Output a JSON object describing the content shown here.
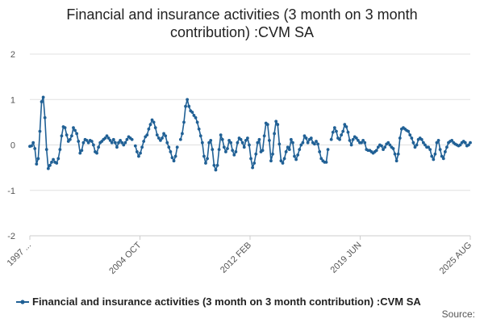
{
  "chart_data": {
    "type": "line",
    "title_line1": "Financial and insurance activities (3 month on 3 month",
    "title_line2": "contribution) :CVM SA",
    "xlabel": "",
    "ylabel": "",
    "ylim": [
      -2,
      2
    ],
    "yticks": [
      "2",
      "1",
      "0",
      "-1",
      "-2"
    ],
    "xtick_labels": [
      "1997 ...",
      "2004 OCT",
      "2012 FEB",
      "2019 JUN",
      "2025 AUG"
    ],
    "grid": true,
    "legend_position": "bottom",
    "series_color": "#206095",
    "source_label": "Source:",
    "series": [
      {
        "name": "Financial and insurance activities (3 month on 3 month contribution) :CVM SA",
        "points": [
          [
            0,
            -0.03
          ],
          [
            1,
            -0.02
          ],
          [
            2,
            0.05
          ],
          [
            3,
            -0.08
          ],
          [
            4,
            -0.42
          ],
          [
            5,
            -0.3
          ],
          [
            6,
            0.3
          ],
          [
            7,
            0.95
          ],
          [
            8,
            1.05
          ],
          [
            9,
            0.6
          ],
          [
            10,
            -0.1
          ],
          [
            11,
            -0.52
          ],
          [
            12,
            -0.45
          ],
          [
            13,
            -0.38
          ],
          [
            14,
            -0.32
          ],
          [
            15,
            -0.38
          ],
          [
            16,
            -0.4
          ],
          [
            17,
            -0.3
          ],
          [
            18,
            -0.1
          ],
          [
            19,
            0.2
          ],
          [
            20,
            0.4
          ],
          [
            21,
            0.38
          ],
          [
            22,
            0.22
          ],
          [
            23,
            0.08
          ],
          [
            24,
            0.12
          ],
          [
            25,
            0.2
          ],
          [
            26,
            0.38
          ],
          [
            27,
            0.32
          ],
          [
            28,
            0.25
          ],
          [
            29,
            0.08
          ],
          [
            30,
            -0.18
          ],
          [
            31,
            -0.12
          ],
          [
            32,
            0.05
          ],
          [
            33,
            0.12
          ],
          [
            34,
            0.1
          ],
          [
            35,
            0.05
          ],
          [
            36,
            0.1
          ],
          [
            37,
            0.08
          ],
          [
            38,
            0.0
          ],
          [
            39,
            -0.15
          ],
          [
            40,
            -0.18
          ],
          [
            41,
            -0.05
          ],
          [
            42,
            0.05
          ],
          [
            43,
            0.08
          ],
          [
            44,
            0.12
          ],
          [
            45,
            0.15
          ],
          [
            46,
            0.2
          ],
          [
            47,
            0.15
          ],
          [
            48,
            0.1
          ],
          [
            49,
            0.05
          ],
          [
            50,
            0.12
          ],
          [
            51,
            0.05
          ],
          [
            52,
            -0.05
          ],
          [
            53,
            0.05
          ],
          [
            54,
            0.1
          ],
          [
            55,
            0.05
          ],
          [
            56,
            0.0
          ],
          [
            57,
            0.05
          ],
          [
            58,
            0.12
          ],
          [
            59,
            0.18
          ],
          [
            60,
            0.15
          ],
          [
            61,
            0.12
          ],
          [
            63,
            -0.02
          ],
          [
            64,
            -0.15
          ],
          [
            65,
            -0.25
          ],
          [
            66,
            -0.18
          ],
          [
            67,
            -0.05
          ],
          [
            68,
            0.08
          ],
          [
            69,
            0.18
          ],
          [
            70,
            0.22
          ],
          [
            71,
            0.35
          ],
          [
            72,
            0.45
          ],
          [
            73,
            0.55
          ],
          [
            74,
            0.5
          ],
          [
            75,
            0.38
          ],
          [
            76,
            0.22
          ],
          [
            77,
            0.15
          ],
          [
            78,
            0.1
          ],
          [
            79,
            0.15
          ],
          [
            80,
            0.25
          ],
          [
            81,
            0.2
          ],
          [
            82,
            0.05
          ],
          [
            83,
            -0.05
          ],
          [
            84,
            -0.15
          ],
          [
            85,
            -0.28
          ],
          [
            86,
            -0.35
          ],
          [
            87,
            -0.25
          ],
          [
            88,
            -0.05
          ],
          [
            90,
            0.12
          ],
          [
            91,
            0.25
          ],
          [
            92,
            0.5
          ],
          [
            93,
            0.85
          ],
          [
            94,
            1.0
          ],
          [
            95,
            0.85
          ],
          [
            96,
            0.75
          ],
          [
            97,
            0.72
          ],
          [
            98,
            0.65
          ],
          [
            99,
            0.6
          ],
          [
            100,
            0.5
          ],
          [
            101,
            0.35
          ],
          [
            102,
            0.2
          ],
          [
            103,
            0.05
          ],
          [
            104,
            -0.25
          ],
          [
            105,
            -0.4
          ],
          [
            106,
            -0.3
          ],
          [
            107,
            0.05
          ],
          [
            108,
            0.1
          ],
          [
            109,
            -0.1
          ],
          [
            110,
            -0.45
          ],
          [
            111,
            -0.55
          ],
          [
            112,
            -0.45
          ],
          [
            113,
            -0.1
          ],
          [
            114,
            0.22
          ],
          [
            115,
            0.12
          ],
          [
            116,
            -0.05
          ],
          [
            117,
            -0.15
          ],
          [
            118,
            -0.08
          ],
          [
            119,
            0.1
          ],
          [
            120,
            0.05
          ],
          [
            121,
            -0.12
          ],
          [
            122,
            -0.22
          ],
          [
            123,
            -0.15
          ],
          [
            124,
            0.05
          ],
          [
            125,
            0.15
          ],
          [
            126,
            0.12
          ],
          [
            127,
            0.05
          ],
          [
            128,
            -0.05
          ],
          [
            129,
            0.1
          ],
          [
            130,
            0.15
          ],
          [
            131,
            0.0
          ],
          [
            132,
            -0.3
          ],
          [
            133,
            -0.5
          ],
          [
            134,
            -0.4
          ],
          [
            135,
            -0.2
          ],
          [
            136,
            0.05
          ],
          [
            137,
            0.12
          ],
          [
            138,
            -0.15
          ],
          [
            139,
            -0.12
          ],
          [
            140,
            0.2
          ],
          [
            141,
            0.48
          ],
          [
            142,
            0.45
          ],
          [
            143,
            0.1
          ],
          [
            144,
            -0.35
          ],
          [
            145,
            -0.2
          ],
          [
            146,
            0.25
          ],
          [
            147,
            0.52
          ],
          [
            148,
            0.45
          ],
          [
            149,
            0.02
          ],
          [
            150,
            -0.35
          ],
          [
            151,
            -0.4
          ],
          [
            152,
            -0.3
          ],
          [
            153,
            -0.15
          ],
          [
            154,
            -0.05
          ],
          [
            155,
            -0.1
          ],
          [
            156,
            0.12
          ],
          [
            157,
            0.05
          ],
          [
            158,
            -0.25
          ],
          [
            159,
            -0.32
          ],
          [
            160,
            -0.22
          ],
          [
            161,
            -0.1
          ],
          [
            162,
            0.0
          ],
          [
            163,
            0.05
          ],
          [
            164,
            0.2
          ],
          [
            165,
            0.15
          ],
          [
            166,
            0.05
          ],
          [
            167,
            0.12
          ],
          [
            168,
            0.15
          ],
          [
            169,
            0.05
          ],
          [
            170,
            0.02
          ],
          [
            171,
            0.08
          ],
          [
            172,
            0.02
          ],
          [
            173,
            -0.15
          ],
          [
            174,
            -0.3
          ],
          [
            175,
            -0.35
          ],
          [
            176,
            -0.38
          ],
          [
            177,
            -0.38
          ],
          [
            178,
            -0.1
          ],
          [
            180,
            0.12
          ],
          [
            181,
            0.28
          ],
          [
            182,
            0.38
          ],
          [
            183,
            0.3
          ],
          [
            184,
            0.15
          ],
          [
            185,
            0.12
          ],
          [
            186,
            0.22
          ],
          [
            187,
            0.3
          ],
          [
            188,
            0.45
          ],
          [
            189,
            0.4
          ],
          [
            190,
            0.28
          ],
          [
            191,
            0.1
          ],
          [
            192,
            0.0
          ],
          [
            193,
            0.12
          ],
          [
            194,
            0.18
          ],
          [
            195,
            0.15
          ],
          [
            196,
            0.1
          ],
          [
            197,
            0.05
          ],
          [
            198,
            0.05
          ],
          [
            199,
            0.1
          ],
          [
            200,
            0.05
          ],
          [
            201,
            -0.1
          ],
          [
            202,
            -0.12
          ],
          [
            203,
            -0.12
          ],
          [
            204,
            -0.15
          ],
          [
            205,
            -0.18
          ],
          [
            206,
            -0.15
          ],
          [
            207,
            -0.12
          ],
          [
            208,
            -0.05
          ],
          [
            209,
            0.0
          ],
          [
            210,
            -0.02
          ],
          [
            211,
            -0.1
          ],
          [
            212,
            -0.05
          ],
          [
            213,
            0.02
          ],
          [
            214,
            0.05
          ],
          [
            215,
            0.0
          ],
          [
            216,
            -0.05
          ],
          [
            217,
            -0.08
          ],
          [
            218,
            -0.2
          ],
          [
            219,
            -0.35
          ],
          [
            220,
            -0.2
          ],
          [
            221,
            0.15
          ],
          [
            222,
            0.35
          ],
          [
            223,
            0.38
          ],
          [
            224,
            0.35
          ],
          [
            225,
            0.32
          ],
          [
            226,
            0.3
          ],
          [
            227,
            0.22
          ],
          [
            228,
            0.15
          ],
          [
            229,
            0.05
          ],
          [
            230,
            -0.05
          ],
          [
            231,
            0.0
          ],
          [
            232,
            0.12
          ],
          [
            233,
            0.15
          ],
          [
            234,
            0.12
          ],
          [
            235,
            0.05
          ],
          [
            236,
            0.0
          ],
          [
            237,
            -0.05
          ],
          [
            238,
            -0.05
          ],
          [
            239,
            -0.1
          ],
          [
            240,
            -0.25
          ],
          [
            241,
            -0.32
          ],
          [
            242,
            -0.2
          ],
          [
            243,
            0.05
          ],
          [
            244,
            0.1
          ],
          [
            245,
            -0.1
          ],
          [
            246,
            -0.25
          ],
          [
            247,
            -0.3
          ],
          [
            248,
            -0.15
          ],
          [
            249,
            -0.05
          ],
          [
            250,
            0.05
          ],
          [
            251,
            0.08
          ],
          [
            252,
            0.1
          ],
          [
            253,
            0.05
          ],
          [
            254,
            0.02
          ],
          [
            255,
            0.0
          ],
          [
            256,
            -0.02
          ],
          [
            257,
            0.0
          ],
          [
            258,
            0.05
          ],
          [
            259,
            0.08
          ],
          [
            260,
            0.05
          ],
          [
            261,
            -0.02
          ],
          [
            262,
            0.0
          ],
          [
            263,
            0.05
          ]
        ]
      }
    ]
  }
}
